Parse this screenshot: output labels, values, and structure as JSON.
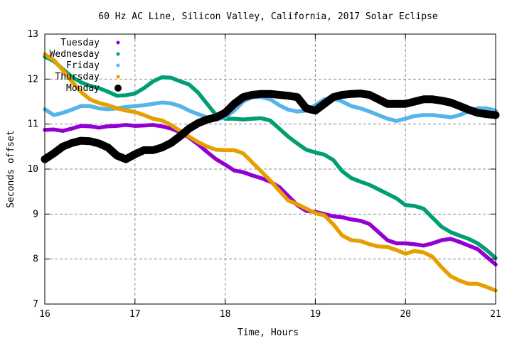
{
  "chart_data": {
    "type": "line",
    "title": "60 Hz AC Line, Silicon Valley, California, 2017 Solar Eclipse",
    "xlabel": "Time, Hours",
    "ylabel": "Seconds offset",
    "xlim": [
      16,
      21
    ],
    "ylim": [
      7,
      13
    ],
    "x_ticks": [
      "16",
      "17",
      "18",
      "19",
      "20",
      "21"
    ],
    "y_ticks": [
      "7",
      "8",
      "9",
      "10",
      "11",
      "12",
      "13"
    ],
    "grid": true,
    "legend_position": "top-left",
    "series": [
      {
        "name": "Tuesday",
        "color": "#9400d3",
        "points": [
          [
            16.0,
            10.87
          ],
          [
            16.1,
            10.88
          ],
          [
            16.2,
            10.85
          ],
          [
            16.3,
            10.9
          ],
          [
            16.4,
            10.96
          ],
          [
            16.5,
            10.95
          ],
          [
            16.6,
            10.92
          ],
          [
            16.7,
            10.95
          ],
          [
            16.8,
            10.96
          ],
          [
            16.9,
            10.98
          ],
          [
            17.0,
            10.96
          ],
          [
            17.1,
            10.97
          ],
          [
            17.2,
            10.98
          ],
          [
            17.3,
            10.95
          ],
          [
            17.4,
            10.9
          ],
          [
            17.5,
            10.82
          ],
          [
            17.6,
            10.7
          ],
          [
            17.7,
            10.55
          ],
          [
            17.8,
            10.38
          ],
          [
            17.9,
            10.22
          ],
          [
            18.0,
            10.1
          ],
          [
            18.1,
            9.97
          ],
          [
            18.2,
            9.93
          ],
          [
            18.3,
            9.86
          ],
          [
            18.4,
            9.8
          ],
          [
            18.5,
            9.72
          ],
          [
            18.6,
            9.6
          ],
          [
            18.7,
            9.4
          ],
          [
            18.8,
            9.2
          ],
          [
            18.9,
            9.07
          ],
          [
            19.0,
            9.05
          ],
          [
            19.1,
            9.0
          ],
          [
            19.2,
            8.95
          ],
          [
            19.3,
            8.93
          ],
          [
            19.4,
            8.88
          ],
          [
            19.5,
            8.85
          ],
          [
            19.6,
            8.78
          ],
          [
            19.7,
            8.6
          ],
          [
            19.8,
            8.42
          ],
          [
            19.9,
            8.35
          ],
          [
            20.0,
            8.35
          ],
          [
            20.1,
            8.33
          ],
          [
            20.2,
            8.3
          ],
          [
            20.3,
            8.35
          ],
          [
            20.4,
            8.42
          ],
          [
            20.5,
            8.45
          ],
          [
            20.6,
            8.38
          ],
          [
            20.7,
            8.3
          ],
          [
            20.8,
            8.22
          ],
          [
            20.9,
            8.05
          ],
          [
            21.0,
            7.88
          ]
        ]
      },
      {
        "name": "Wednesday",
        "color": "#009e73",
        "points": [
          [
            16.0,
            12.5
          ],
          [
            16.1,
            12.4
          ],
          [
            16.2,
            12.22
          ],
          [
            16.3,
            12.05
          ],
          [
            16.4,
            11.93
          ],
          [
            16.5,
            11.85
          ],
          [
            16.6,
            11.8
          ],
          [
            16.7,
            11.72
          ],
          [
            16.8,
            11.63
          ],
          [
            16.9,
            11.64
          ],
          [
            17.0,
            11.68
          ],
          [
            17.1,
            11.8
          ],
          [
            17.2,
            11.95
          ],
          [
            17.3,
            12.04
          ],
          [
            17.4,
            12.03
          ],
          [
            17.5,
            11.95
          ],
          [
            17.6,
            11.88
          ],
          [
            17.7,
            11.7
          ],
          [
            17.8,
            11.45
          ],
          [
            17.9,
            11.2
          ],
          [
            18.0,
            11.12
          ],
          [
            18.1,
            11.12
          ],
          [
            18.2,
            11.1
          ],
          [
            18.3,
            11.12
          ],
          [
            18.4,
            11.13
          ],
          [
            18.5,
            11.08
          ],
          [
            18.6,
            10.9
          ],
          [
            18.7,
            10.72
          ],
          [
            18.8,
            10.57
          ],
          [
            18.9,
            10.43
          ],
          [
            19.0,
            10.37
          ],
          [
            19.1,
            10.32
          ],
          [
            19.2,
            10.2
          ],
          [
            19.3,
            9.95
          ],
          [
            19.4,
            9.8
          ],
          [
            19.5,
            9.72
          ],
          [
            19.6,
            9.65
          ],
          [
            19.7,
            9.55
          ],
          [
            19.8,
            9.45
          ],
          [
            19.9,
            9.35
          ],
          [
            20.0,
            9.2
          ],
          [
            20.1,
            9.18
          ],
          [
            20.2,
            9.12
          ],
          [
            20.3,
            8.92
          ],
          [
            20.4,
            8.72
          ],
          [
            20.5,
            8.6
          ],
          [
            20.6,
            8.52
          ],
          [
            20.7,
            8.45
          ],
          [
            20.8,
            8.35
          ],
          [
            20.9,
            8.2
          ],
          [
            21.0,
            8.02
          ]
        ]
      },
      {
        "name": "Friday",
        "color": "#56b4e9",
        "points": [
          [
            16.0,
            11.33
          ],
          [
            16.1,
            11.2
          ],
          [
            16.2,
            11.25
          ],
          [
            16.3,
            11.32
          ],
          [
            16.4,
            11.4
          ],
          [
            16.5,
            11.4
          ],
          [
            16.6,
            11.35
          ],
          [
            16.7,
            11.33
          ],
          [
            16.8,
            11.35
          ],
          [
            16.9,
            11.38
          ],
          [
            17.0,
            11.4
          ],
          [
            17.1,
            11.42
          ],
          [
            17.2,
            11.45
          ],
          [
            17.3,
            11.48
          ],
          [
            17.4,
            11.46
          ],
          [
            17.5,
            11.4
          ],
          [
            17.6,
            11.3
          ],
          [
            17.7,
            11.22
          ],
          [
            17.8,
            11.15
          ],
          [
            17.9,
            11.1
          ],
          [
            18.0,
            11.15
          ],
          [
            18.1,
            11.3
          ],
          [
            18.2,
            11.5
          ],
          [
            18.3,
            11.6
          ],
          [
            18.4,
            11.6
          ],
          [
            18.5,
            11.55
          ],
          [
            18.6,
            11.42
          ],
          [
            18.7,
            11.32
          ],
          [
            18.8,
            11.28
          ],
          [
            18.9,
            11.3
          ],
          [
            19.0,
            11.42
          ],
          [
            19.1,
            11.55
          ],
          [
            19.2,
            11.58
          ],
          [
            19.3,
            11.5
          ],
          [
            19.4,
            11.4
          ],
          [
            19.5,
            11.35
          ],
          [
            19.6,
            11.28
          ],
          [
            19.7,
            11.2
          ],
          [
            19.8,
            11.12
          ],
          [
            19.9,
            11.07
          ],
          [
            20.0,
            11.12
          ],
          [
            20.1,
            11.18
          ],
          [
            20.2,
            11.2
          ],
          [
            20.3,
            11.2
          ],
          [
            20.4,
            11.18
          ],
          [
            20.5,
            11.15
          ],
          [
            20.6,
            11.2
          ],
          [
            20.7,
            11.28
          ],
          [
            20.8,
            11.35
          ],
          [
            20.9,
            11.35
          ],
          [
            21.0,
            11.3
          ]
        ]
      },
      {
        "name": "Thursday",
        "color": "#e69f00",
        "points": [
          [
            16.0,
            12.55
          ],
          [
            16.1,
            12.42
          ],
          [
            16.2,
            12.2
          ],
          [
            16.3,
            11.95
          ],
          [
            16.4,
            11.72
          ],
          [
            16.5,
            11.55
          ],
          [
            16.6,
            11.47
          ],
          [
            16.7,
            11.42
          ],
          [
            16.8,
            11.35
          ],
          [
            16.9,
            11.3
          ],
          [
            17.0,
            11.27
          ],
          [
            17.1,
            11.2
          ],
          [
            17.2,
            11.12
          ],
          [
            17.3,
            11.08
          ],
          [
            17.4,
            10.98
          ],
          [
            17.5,
            10.85
          ],
          [
            17.6,
            10.72
          ],
          [
            17.7,
            10.6
          ],
          [
            17.8,
            10.5
          ],
          [
            17.9,
            10.43
          ],
          [
            18.0,
            10.42
          ],
          [
            18.1,
            10.42
          ],
          [
            18.2,
            10.35
          ],
          [
            18.3,
            10.15
          ],
          [
            18.4,
            9.95
          ],
          [
            18.5,
            9.75
          ],
          [
            18.6,
            9.52
          ],
          [
            18.7,
            9.3
          ],
          [
            18.8,
            9.22
          ],
          [
            18.9,
            9.12
          ],
          [
            19.0,
            9.02
          ],
          [
            19.1,
            8.97
          ],
          [
            19.2,
            8.77
          ],
          [
            19.3,
            8.52
          ],
          [
            19.4,
            8.42
          ],
          [
            19.5,
            8.4
          ],
          [
            19.6,
            8.33
          ],
          [
            19.7,
            8.28
          ],
          [
            19.8,
            8.27
          ],
          [
            19.9,
            8.2
          ],
          [
            20.0,
            8.12
          ],
          [
            20.1,
            8.18
          ],
          [
            20.2,
            8.15
          ],
          [
            20.3,
            8.05
          ],
          [
            20.4,
            7.82
          ],
          [
            20.5,
            7.62
          ],
          [
            20.6,
            7.52
          ],
          [
            20.7,
            7.45
          ],
          [
            20.8,
            7.45
          ],
          [
            20.9,
            7.38
          ],
          [
            21.0,
            7.3
          ]
        ]
      },
      {
        "name": "Monday",
        "color": "#000000",
        "points": [
          [
            16.0,
            10.22
          ],
          [
            16.1,
            10.35
          ],
          [
            16.2,
            10.5
          ],
          [
            16.3,
            10.58
          ],
          [
            16.4,
            10.63
          ],
          [
            16.5,
            10.62
          ],
          [
            16.6,
            10.57
          ],
          [
            16.7,
            10.48
          ],
          [
            16.8,
            10.3
          ],
          [
            16.9,
            10.22
          ],
          [
            17.0,
            10.33
          ],
          [
            17.1,
            10.42
          ],
          [
            17.2,
            10.42
          ],
          [
            17.3,
            10.48
          ],
          [
            17.4,
            10.58
          ],
          [
            17.5,
            10.73
          ],
          [
            17.6,
            10.9
          ],
          [
            17.7,
            11.02
          ],
          [
            17.8,
            11.1
          ],
          [
            17.9,
            11.15
          ],
          [
            18.0,
            11.25
          ],
          [
            18.1,
            11.45
          ],
          [
            18.2,
            11.6
          ],
          [
            18.3,
            11.65
          ],
          [
            18.4,
            11.67
          ],
          [
            18.5,
            11.67
          ],
          [
            18.6,
            11.65
          ],
          [
            18.7,
            11.63
          ],
          [
            18.8,
            11.6
          ],
          [
            18.9,
            11.35
          ],
          [
            19.0,
            11.3
          ],
          [
            19.1,
            11.45
          ],
          [
            19.2,
            11.6
          ],
          [
            19.3,
            11.65
          ],
          [
            19.4,
            11.67
          ],
          [
            19.5,
            11.68
          ],
          [
            19.6,
            11.65
          ],
          [
            19.7,
            11.55
          ],
          [
            19.8,
            11.45
          ],
          [
            19.9,
            11.45
          ],
          [
            20.0,
            11.45
          ],
          [
            20.1,
            11.5
          ],
          [
            20.2,
            11.55
          ],
          [
            20.3,
            11.55
          ],
          [
            20.4,
            11.52
          ],
          [
            20.5,
            11.48
          ],
          [
            20.6,
            11.4
          ],
          [
            20.7,
            11.32
          ],
          [
            20.8,
            11.25
          ],
          [
            20.9,
            11.22
          ],
          [
            21.0,
            11.2
          ]
        ]
      }
    ]
  }
}
